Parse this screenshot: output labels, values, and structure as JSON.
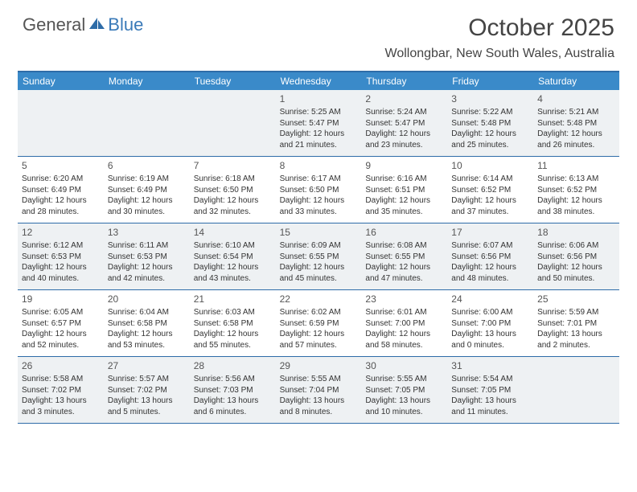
{
  "logo": {
    "part1": "General",
    "part2": "Blue"
  },
  "title": "October 2025",
  "location": "Wollongbar, New South Wales, Australia",
  "header_bg": "#3a8ac9",
  "border_color": "#2e6ca8",
  "shade_color": "#eef1f3",
  "day_names": [
    "Sunday",
    "Monday",
    "Tuesday",
    "Wednesday",
    "Thursday",
    "Friday",
    "Saturday"
  ],
  "weeks": [
    [
      {
        "num": "",
        "lines": []
      },
      {
        "num": "",
        "lines": []
      },
      {
        "num": "",
        "lines": []
      },
      {
        "num": "1",
        "lines": [
          "Sunrise: 5:25 AM",
          "Sunset: 5:47 PM",
          "Daylight: 12 hours and 21 minutes."
        ]
      },
      {
        "num": "2",
        "lines": [
          "Sunrise: 5:24 AM",
          "Sunset: 5:47 PM",
          "Daylight: 12 hours and 23 minutes."
        ]
      },
      {
        "num": "3",
        "lines": [
          "Sunrise: 5:22 AM",
          "Sunset: 5:48 PM",
          "Daylight: 12 hours and 25 minutes."
        ]
      },
      {
        "num": "4",
        "lines": [
          "Sunrise: 5:21 AM",
          "Sunset: 5:48 PM",
          "Daylight: 12 hours and 26 minutes."
        ]
      }
    ],
    [
      {
        "num": "5",
        "lines": [
          "Sunrise: 6:20 AM",
          "Sunset: 6:49 PM",
          "Daylight: 12 hours and 28 minutes."
        ]
      },
      {
        "num": "6",
        "lines": [
          "Sunrise: 6:19 AM",
          "Sunset: 6:49 PM",
          "Daylight: 12 hours and 30 minutes."
        ]
      },
      {
        "num": "7",
        "lines": [
          "Sunrise: 6:18 AM",
          "Sunset: 6:50 PM",
          "Daylight: 12 hours and 32 minutes."
        ]
      },
      {
        "num": "8",
        "lines": [
          "Sunrise: 6:17 AM",
          "Sunset: 6:50 PM",
          "Daylight: 12 hours and 33 minutes."
        ]
      },
      {
        "num": "9",
        "lines": [
          "Sunrise: 6:16 AM",
          "Sunset: 6:51 PM",
          "Daylight: 12 hours and 35 minutes."
        ]
      },
      {
        "num": "10",
        "lines": [
          "Sunrise: 6:14 AM",
          "Sunset: 6:52 PM",
          "Daylight: 12 hours and 37 minutes."
        ]
      },
      {
        "num": "11",
        "lines": [
          "Sunrise: 6:13 AM",
          "Sunset: 6:52 PM",
          "Daylight: 12 hours and 38 minutes."
        ]
      }
    ],
    [
      {
        "num": "12",
        "lines": [
          "Sunrise: 6:12 AM",
          "Sunset: 6:53 PM",
          "Daylight: 12 hours and 40 minutes."
        ]
      },
      {
        "num": "13",
        "lines": [
          "Sunrise: 6:11 AM",
          "Sunset: 6:53 PM",
          "Daylight: 12 hours and 42 minutes."
        ]
      },
      {
        "num": "14",
        "lines": [
          "Sunrise: 6:10 AM",
          "Sunset: 6:54 PM",
          "Daylight: 12 hours and 43 minutes."
        ]
      },
      {
        "num": "15",
        "lines": [
          "Sunrise: 6:09 AM",
          "Sunset: 6:55 PM",
          "Daylight: 12 hours and 45 minutes."
        ]
      },
      {
        "num": "16",
        "lines": [
          "Sunrise: 6:08 AM",
          "Sunset: 6:55 PM",
          "Daylight: 12 hours and 47 minutes."
        ]
      },
      {
        "num": "17",
        "lines": [
          "Sunrise: 6:07 AM",
          "Sunset: 6:56 PM",
          "Daylight: 12 hours and 48 minutes."
        ]
      },
      {
        "num": "18",
        "lines": [
          "Sunrise: 6:06 AM",
          "Sunset: 6:56 PM",
          "Daylight: 12 hours and 50 minutes."
        ]
      }
    ],
    [
      {
        "num": "19",
        "lines": [
          "Sunrise: 6:05 AM",
          "Sunset: 6:57 PM",
          "Daylight: 12 hours and 52 minutes."
        ]
      },
      {
        "num": "20",
        "lines": [
          "Sunrise: 6:04 AM",
          "Sunset: 6:58 PM",
          "Daylight: 12 hours and 53 minutes."
        ]
      },
      {
        "num": "21",
        "lines": [
          "Sunrise: 6:03 AM",
          "Sunset: 6:58 PM",
          "Daylight: 12 hours and 55 minutes."
        ]
      },
      {
        "num": "22",
        "lines": [
          "Sunrise: 6:02 AM",
          "Sunset: 6:59 PM",
          "Daylight: 12 hours and 57 minutes."
        ]
      },
      {
        "num": "23",
        "lines": [
          "Sunrise: 6:01 AM",
          "Sunset: 7:00 PM",
          "Daylight: 12 hours and 58 minutes."
        ]
      },
      {
        "num": "24",
        "lines": [
          "Sunrise: 6:00 AM",
          "Sunset: 7:00 PM",
          "Daylight: 13 hours and 0 minutes."
        ]
      },
      {
        "num": "25",
        "lines": [
          "Sunrise: 5:59 AM",
          "Sunset: 7:01 PM",
          "Daylight: 13 hours and 2 minutes."
        ]
      }
    ],
    [
      {
        "num": "26",
        "lines": [
          "Sunrise: 5:58 AM",
          "Sunset: 7:02 PM",
          "Daylight: 13 hours and 3 minutes."
        ]
      },
      {
        "num": "27",
        "lines": [
          "Sunrise: 5:57 AM",
          "Sunset: 7:02 PM",
          "Daylight: 13 hours and 5 minutes."
        ]
      },
      {
        "num": "28",
        "lines": [
          "Sunrise: 5:56 AM",
          "Sunset: 7:03 PM",
          "Daylight: 13 hours and 6 minutes."
        ]
      },
      {
        "num": "29",
        "lines": [
          "Sunrise: 5:55 AM",
          "Sunset: 7:04 PM",
          "Daylight: 13 hours and 8 minutes."
        ]
      },
      {
        "num": "30",
        "lines": [
          "Sunrise: 5:55 AM",
          "Sunset: 7:05 PM",
          "Daylight: 13 hours and 10 minutes."
        ]
      },
      {
        "num": "31",
        "lines": [
          "Sunrise: 5:54 AM",
          "Sunset: 7:05 PM",
          "Daylight: 13 hours and 11 minutes."
        ]
      },
      {
        "num": "",
        "lines": []
      }
    ]
  ]
}
